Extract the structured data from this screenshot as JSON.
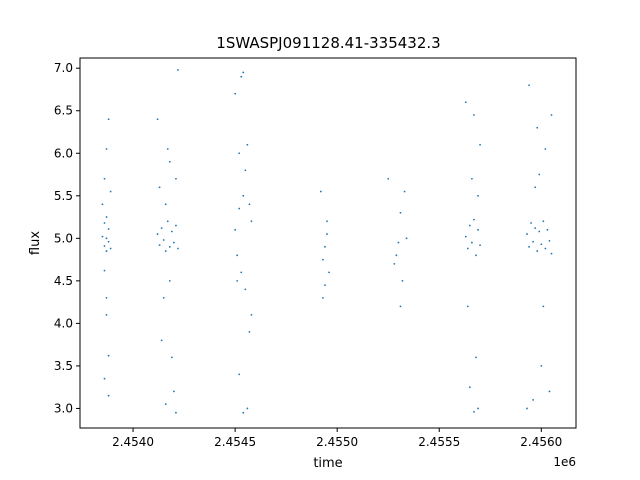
{
  "chart_data": {
    "type": "scatter",
    "title": "1SWASPJ091128.41-335432.3",
    "xlabel": "time",
    "ylabel": "flux",
    "x_offset_label": "1e6",
    "xlim": [
      2.45374,
      2.45617
    ],
    "ylim": [
      2.77,
      7.12
    ],
    "x_ticks": [
      2.454,
      2.4545,
      2.455,
      2.4555,
      2.456
    ],
    "x_tick_labels": [
      "2.4540",
      "2.4545",
      "2.4550",
      "2.4555",
      "2.4560"
    ],
    "y_ticks": [
      3.0,
      3.5,
      4.0,
      4.5,
      5.0,
      5.5,
      6.0,
      6.5,
      7.0
    ],
    "y_tick_labels": [
      "3.0",
      "3.5",
      "4.0",
      "4.5",
      "5.0",
      "5.5",
      "6.0",
      "6.5",
      "7.0"
    ],
    "grid": false,
    "marker_color": "#1f77b4",
    "series": [
      {
        "x": [
          2.45385,
          2.45386,
          2.45386,
          2.45387,
          2.45387,
          2.45388,
          2.45388,
          2.45389,
          2.45385,
          2.45386,
          2.45387,
          2.45388,
          2.45389,
          2.45386,
          2.45387,
          2.45388,
          2.45386,
          2.45387,
          2.45388,
          2.45387
        ],
        "y": [
          5.02,
          4.91,
          5.18,
          4.85,
          5.25,
          4.96,
          5.11,
          4.88,
          5.4,
          4.62,
          6.05,
          3.62,
          5.55,
          3.35,
          4.3,
          6.4,
          5.7,
          4.1,
          3.15,
          5.0
        ]
      },
      {
        "x": [
          2.45412,
          2.45413,
          2.45414,
          2.45415,
          2.45416,
          2.45417,
          2.45418,
          2.45419,
          2.4542,
          2.45421,
          2.45422,
          2.45413,
          2.45415,
          2.45417,
          2.45419,
          2.45421,
          2.45414,
          2.45416,
          2.45418,
          2.4542,
          2.45422,
          2.45412,
          2.45416,
          2.45421,
          2.45418
        ],
        "y": [
          5.05,
          4.92,
          5.12,
          4.98,
          4.85,
          5.2,
          4.9,
          5.08,
          4.95,
          5.15,
          4.88,
          5.6,
          4.3,
          6.05,
          3.6,
          5.7,
          3.8,
          5.4,
          4.5,
          3.2,
          6.98,
          6.4,
          3.05,
          2.95,
          5.9
        ]
      },
      {
        "x": [
          2.4545,
          2.45451,
          2.45452,
          2.45453,
          2.45454,
          2.45455,
          2.45456,
          2.45457,
          2.45458,
          2.4545,
          2.45452,
          2.45454,
          2.45456,
          2.45458,
          2.45453,
          2.45455,
          2.45451,
          2.45457,
          2.45454,
          2.45452
        ],
        "y": [
          5.1,
          4.8,
          5.35,
          4.6,
          5.5,
          4.4,
          6.1,
          3.9,
          5.2,
          6.7,
          3.4,
          6.95,
          3.0,
          4.1,
          6.9,
          5.8,
          4.5,
          5.4,
          2.95,
          6.0
        ]
      },
      {
        "x": [
          2.45492,
          2.45493,
          2.45494,
          2.45495,
          2.45496,
          2.45493,
          2.45495,
          2.45494
        ],
        "y": [
          5.55,
          4.3,
          4.9,
          5.2,
          4.6,
          4.75,
          5.05,
          4.45
        ]
      },
      {
        "x": [
          2.45525,
          2.45528,
          2.4553,
          2.45531,
          2.45532,
          2.45533,
          2.45529,
          2.45531,
          2.45534
        ],
        "y": [
          5.7,
          4.7,
          4.95,
          5.3,
          4.5,
          5.55,
          4.8,
          4.2,
          5.0
        ]
      },
      {
        "x": [
          2.45563,
          2.45564,
          2.45565,
          2.45566,
          2.45567,
          2.45568,
          2.45569,
          2.4557,
          2.45563,
          2.45565,
          2.45567,
          2.45569,
          2.45564,
          2.45566,
          2.45568,
          2.4557,
          2.45567,
          2.45569
        ],
        "y": [
          5.02,
          4.88,
          5.15,
          4.95,
          5.22,
          4.8,
          5.1,
          4.92,
          6.6,
          3.25,
          6.45,
          3.0,
          4.2,
          5.7,
          3.6,
          6.1,
          2.96,
          5.5
        ]
      },
      {
        "x": [
          2.45593,
          2.45594,
          2.45595,
          2.45596,
          2.45597,
          2.45598,
          2.45599,
          2.456,
          2.45601,
          2.45602,
          2.45603,
          2.45604,
          2.45605,
          2.45594,
          2.45596,
          2.45598,
          2.456,
          2.45602,
          2.45604,
          2.45593,
          2.45597,
          2.45601,
          2.45605,
          2.45599
        ],
        "y": [
          5.05,
          4.9,
          5.18,
          4.96,
          5.12,
          4.85,
          5.08,
          4.93,
          5.2,
          4.88,
          5.1,
          4.97,
          4.82,
          6.8,
          3.1,
          6.3,
          3.5,
          6.05,
          3.2,
          3.0,
          5.6,
          4.2,
          6.45,
          5.75
        ]
      }
    ]
  }
}
